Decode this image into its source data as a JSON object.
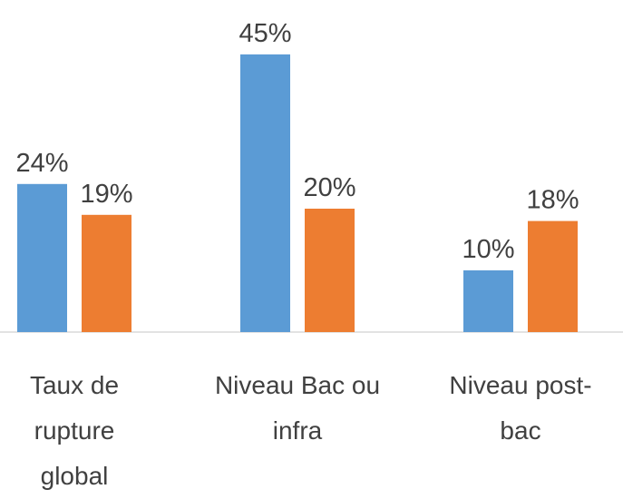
{
  "chart_data": {
    "type": "bar",
    "categories": [
      "Taux de rupture global",
      "Niveau Bac ou infra",
      "Niveau post-bac"
    ],
    "series": [
      {
        "color": "#5b9bd5",
        "values": [
          24,
          45,
          10
        ],
        "value_labels": [
          "24%",
          "45%",
          "10%"
        ]
      },
      {
        "color": "#ed7d31",
        "values": [
          19,
          20,
          18
        ],
        "value_labels": [
          "19%",
          "20%",
          "18%"
        ]
      }
    ]
  }
}
